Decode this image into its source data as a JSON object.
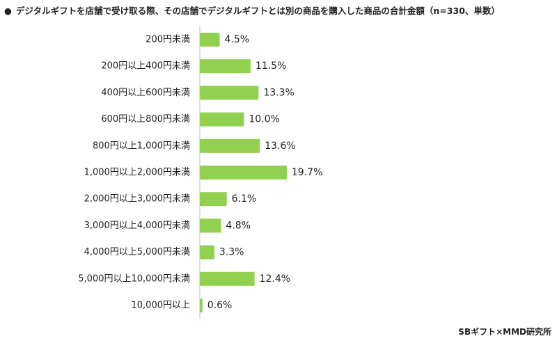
{
  "title": {
    "bullet": "●",
    "text": "デジタルギフトを店舗で受け取る際、その店舗でデジタルギフトとは別の商品を購入した商品の合計金額（n=330、単数）"
  },
  "source": "SBギフト×MMD研究所",
  "chart_data": {
    "type": "bar",
    "orientation": "horizontal",
    "title": "デジタルギフトを店舗で受け取る際、その店舗でデジタルギフトとは別の商品を購入した商品の合計金額（n=330、単数）",
    "categories": [
      "200円未満",
      "200円以上400円未満",
      "400円以上600円未満",
      "600円以上800円未満",
      "800円以上1,000円未満",
      "1,000円以上2,000円未満",
      "2,000円以上3,000円未満",
      "3,000円以上4,000円未満",
      "4,000円以上5,000円未満",
      "5,000円以上10,000円未満",
      "10,000円以上"
    ],
    "values": [
      4.5,
      11.5,
      13.3,
      10.0,
      13.6,
      19.7,
      6.1,
      4.8,
      3.3,
      12.4,
      0.6
    ],
    "value_labels": [
      "4.5%",
      "11.5%",
      "13.3%",
      "10.0%",
      "13.6%",
      "19.7%",
      "6.1%",
      "4.8%",
      "3.3%",
      "12.4%",
      "0.6%"
    ],
    "unit": "%",
    "bar_color": "#92d050",
    "axis_line_color": "#bfbfbf",
    "grid": false,
    "legend": "none"
  }
}
